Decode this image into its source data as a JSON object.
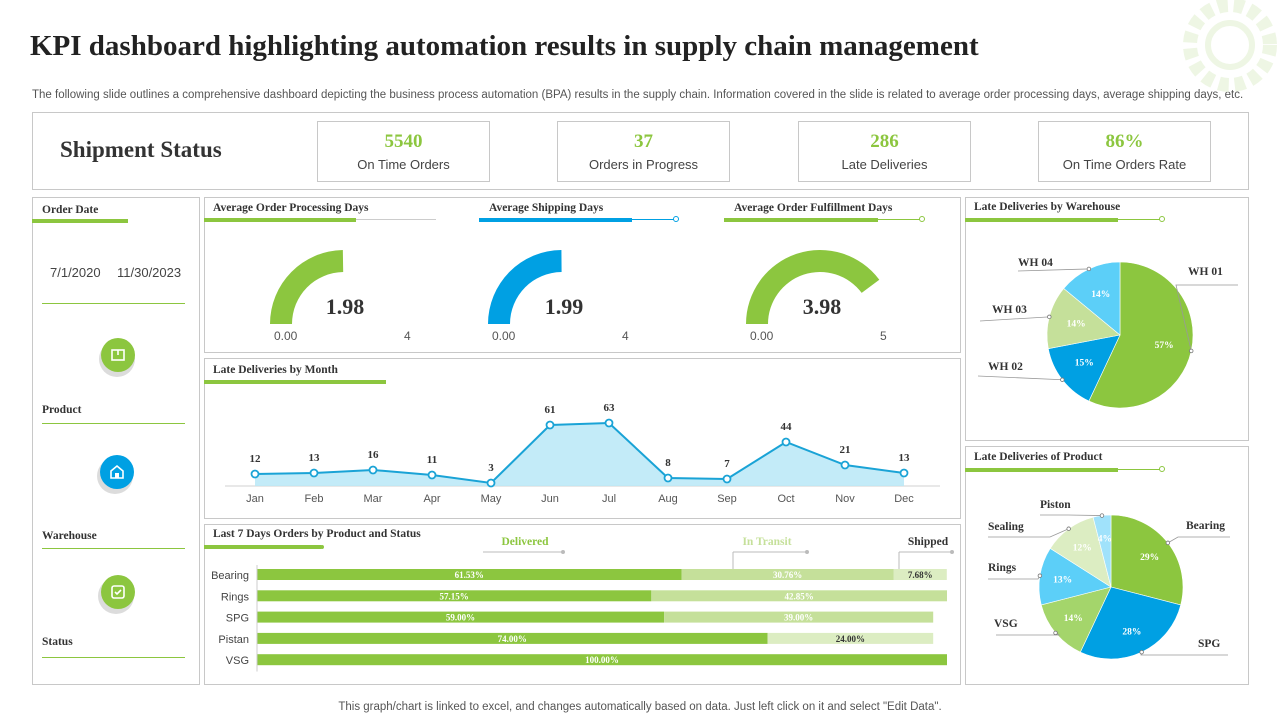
{
  "header": {
    "title": "KPI dashboard highlighting automation results in supply chain management",
    "subtitle": "The following slide outlines a comprehensive dashboard depicting the business process automation (BPA) results in the supply chain. Information covered in the slide is related to average order processing days, average shipping days, etc."
  },
  "shipment": {
    "title": "Shipment Status",
    "kpis": [
      {
        "value": "5540",
        "label": "On Time Orders"
      },
      {
        "value": "37",
        "label": "Orders in Progress"
      },
      {
        "value": "286",
        "label": "Late Deliveries"
      },
      {
        "value": "86%",
        "label": "On Time Orders Rate"
      }
    ]
  },
  "sidebar": {
    "order_date_label": "Order Date",
    "date_from": "7/1/2020",
    "date_to": "11/30/2023",
    "product_label": "Product",
    "warehouse_label": "Warehouse",
    "status_label": "Status"
  },
  "colors": {
    "green": "#8cc63f",
    "blue": "#00a0e3",
    "light_green": "#c5e09a",
    "light_blue": "#5ccff8",
    "pale_green": "#dcedc2"
  },
  "footer": "This graph/chart is linked to excel,  and changes automatically based on data. Just left click on it and select \"Edit Data\".",
  "chart_data": [
    {
      "type": "gauge",
      "title": "Average Order Processing Days",
      "value": 1.98,
      "display": "1.98",
      "min": 0,
      "max": 4,
      "min_label": "0.00",
      "max_label": "4",
      "color": "#8cc63f"
    },
    {
      "type": "gauge",
      "title": "Average Shipping Days",
      "value": 1.99,
      "display": "1.99",
      "min": 0,
      "max": 4,
      "min_label": "0.00",
      "max_label": "4",
      "color": "#00a0e3"
    },
    {
      "type": "gauge",
      "title": "Average Order Fulfillment Days",
      "value": 3.98,
      "display": "3.98",
      "min": 0,
      "max": 5,
      "min_label": "0.00",
      "max_label": "5",
      "color": "#8cc63f"
    },
    {
      "type": "area",
      "title": "Late Deliveries by Month",
      "categories": [
        "Jan",
        "Feb",
        "Mar",
        "Apr",
        "May",
        "Jun",
        "Jul",
        "Aug",
        "Sep",
        "Oct",
        "Nov",
        "Dec"
      ],
      "values": [
        12,
        13,
        16,
        11,
        3,
        61,
        63,
        8,
        7,
        44,
        21,
        13
      ],
      "ylim": [
        0,
        70
      ]
    },
    {
      "type": "bar",
      "stacked": true,
      "orientation": "horizontal",
      "title": "Last 7 Days Orders by Product and Status",
      "categories": [
        "Bearing",
        "Rings",
        "SPG",
        "Pistan",
        "VSG"
      ],
      "series": [
        {
          "name": "Delivered",
          "values": [
            61.53,
            57.15,
            59.0,
            74.0,
            100.0
          ],
          "labels": [
            "61.53%",
            "57.15%",
            "59.00%",
            "74.00%",
            "100.00%"
          ]
        },
        {
          "name": "In Transit",
          "values": [
            30.76,
            42.85,
            39.0,
            0,
            0
          ],
          "labels": [
            "30.76%",
            "42.85%",
            "39.00%",
            "",
            ""
          ]
        },
        {
          "name": "Shipped",
          "values": [
            7.68,
            0,
            0,
            24.0,
            0
          ],
          "labels": [
            "7.68%",
            "",
            "",
            "24.00%",
            ""
          ]
        }
      ]
    },
    {
      "type": "pie",
      "title": "Late Deliveries by Warehouse",
      "labels": [
        "WH 01",
        "WH 02",
        "WH 03",
        "WH 04"
      ],
      "values": [
        57,
        15,
        14,
        14
      ],
      "value_labels": [
        "57%",
        "15%",
        "14%",
        "14%"
      ]
    },
    {
      "type": "pie",
      "title": "Late Deliveries of Product",
      "labels": [
        "Bearing",
        "SPG",
        "VSG",
        "Rings",
        "Sealing",
        "Piston"
      ],
      "values": [
        29,
        28,
        14,
        13,
        12,
        4
      ],
      "value_labels": [
        "29%",
        "28%",
        "14%",
        "13%",
        "12%",
        "4%"
      ]
    }
  ]
}
